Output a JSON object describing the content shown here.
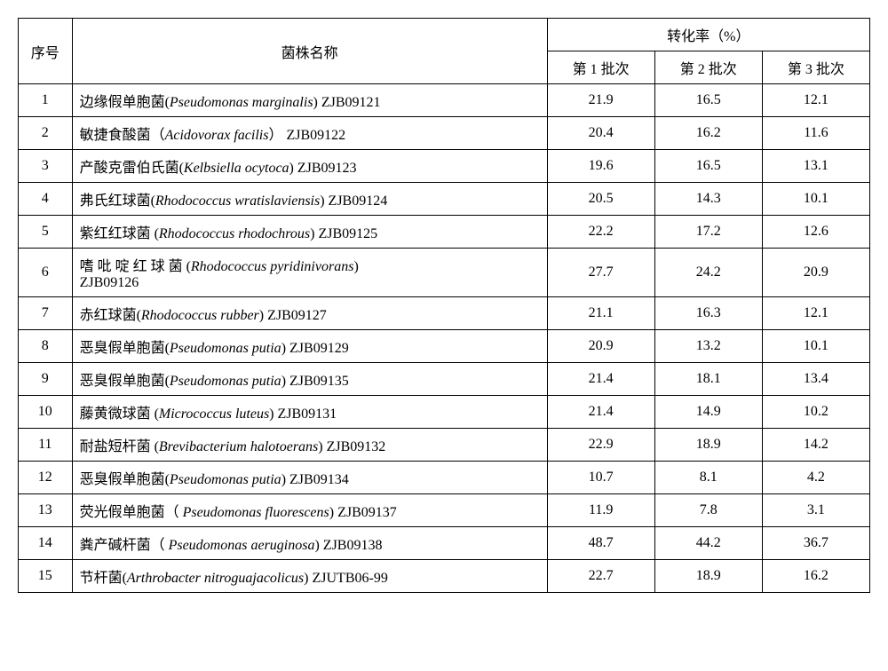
{
  "table": {
    "header": {
      "seq": "序号",
      "name": "菌株名称",
      "rate_group": "转化率（%）",
      "batch1": "第 1 批次",
      "batch2": "第 2 批次",
      "batch3": "第 3 批次"
    },
    "columns": {
      "seq_width": 60,
      "name_width": 530,
      "rate_width": 120
    },
    "rows": [
      {
        "seq": "1",
        "cn": "边缘假单胞菌",
        "latin": "Pseudomonas marginalis",
        "code": "ZJB09121",
        "b1": "21.9",
        "b2": "16.5",
        "b3": "12.1"
      },
      {
        "seq": "2",
        "cn": "敏捷食酸菌",
        "latin": "Acidovorax facilis",
        "code": "ZJB09122",
        "b1": "20.4",
        "b2": "16.2",
        "b3": "11.6",
        "paren_full": true
      },
      {
        "seq": "3",
        "cn": "产酸克雷伯氏菌",
        "latin": "Kelbsiella ocytoca",
        "code": "ZJB09123",
        "b1": "19.6",
        "b2": "16.5",
        "b3": "13.1"
      },
      {
        "seq": "4",
        "cn": "弗氏红球菌",
        "latin": "Rhodococcus wratislaviensis",
        "code": "ZJB09124",
        "b1": "20.5",
        "b2": "14.3",
        "b3": "10.1"
      },
      {
        "seq": "5",
        "cn": "紫红红球菌",
        "latin": "Rhodococcus rhodochrous",
        "code": "ZJB09125",
        "b1": "22.2",
        "b2": "17.2",
        "b3": "12.6",
        "space_before_paren": true
      },
      {
        "seq": "6",
        "cn": "嗜 吡 啶 红 球 菌",
        "latin": "Rhodococcus   pyridinivorans",
        "code": "ZJB09126",
        "b1": "27.7",
        "b2": "24.2",
        "b3": "20.9",
        "space_before_paren": true,
        "code_newline": true
      },
      {
        "seq": "7",
        "cn": "赤红球菌",
        "latin": "Rhodococcus rubber",
        "code": "ZJB09127",
        "b1": "21.1",
        "b2": "16.3",
        "b3": "12.1"
      },
      {
        "seq": "8",
        "cn": "恶臭假单胞菌",
        "latin": "Pseudomonas putia",
        "code": "ZJB09129",
        "b1": "20.9",
        "b2": "13.2",
        "b3": "10.1"
      },
      {
        "seq": "9",
        "cn": "恶臭假单胞菌",
        "latin": "Pseudomonas putia",
        "code": "ZJB09135",
        "b1": "21.4",
        "b2": "18.1",
        "b3": "13.4"
      },
      {
        "seq": "10",
        "cn": "藤黄微球菌",
        "latin": "Micrococcus luteus",
        "code": "ZJB09131",
        "b1": "21.4",
        "b2": "14.9",
        "b3": "10.2",
        "space_before_paren": true
      },
      {
        "seq": "11",
        "cn": "耐盐短杆菌",
        "latin": "Brevibacterium halotoerans",
        "code": "ZJB09132",
        "b1": "22.9",
        "b2": "18.9",
        "b3": "14.2",
        "space_before_paren": true
      },
      {
        "seq": "12",
        "cn": "恶臭假单胞菌",
        "latin": "Pseudomonas putia",
        "code": "ZJB09134",
        "b1": "10.7",
        "b2": "8.1",
        "b3": "4.2"
      },
      {
        "seq": "13",
        "cn": "荧光假单胞菌",
        "latin": " Pseudomonas fluorescens",
        "code": "ZJB09137",
        "b1": "11.9",
        "b2": "7.8",
        "b3": "3.1",
        "paren_full_open": true
      },
      {
        "seq": "14",
        "cn": "粪产碱杆菌",
        "latin": " Pseudomonas aeruginosa",
        "code": "ZJB09138",
        "b1": "48.7",
        "b2": "44.2",
        "b3": "36.7",
        "paren_full_open": true
      },
      {
        "seq": "15",
        "cn": "节杆菌",
        "latin": "Arthrobacter nitroguajacolicus",
        "code": "ZJUTB06-99",
        "b1": "22.7",
        "b2": "18.9",
        "b3": "16.2"
      }
    ],
    "style": {
      "border_color": "#000000",
      "background_color": "#ffffff",
      "font_size": 16,
      "font_family": "SimSun"
    }
  }
}
